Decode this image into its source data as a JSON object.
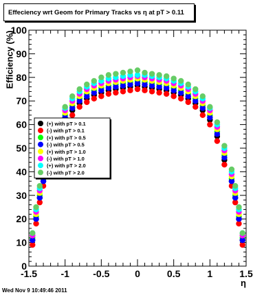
{
  "title": "Effeciency wrt Geom for Primary Tracks vs    η at pT > 0.11",
  "footer": "Wed Nov  9 10:49:46 2011",
  "chart_data": {
    "type": "scatter",
    "title": "Effeciency wrt Geom for Primary Tracks vs    η at pT > 0.11",
    "xlabel": "η",
    "ylabel": "Efficiency (%)",
    "xlim": [
      -1.5,
      1.5
    ],
    "ylim": [
      0,
      100
    ],
    "x_ticks": [
      "-1.5",
      "-1",
      "-0.5",
      "0",
      "0.5",
      "1",
      "1.5"
    ],
    "y_ticks": [
      "0",
      "10",
      "20",
      "30",
      "40",
      "50",
      "60",
      "70",
      "80",
      "90",
      "100"
    ],
    "grid": false,
    "legend_position": "middle-left",
    "series": [
      {
        "name": "(+) with pT > 0.1",
        "color": "#000000",
        "marker": "circle",
        "x": [
          -1.45,
          -1.4,
          -1.35,
          -1.3,
          -1.2,
          -1.1,
          -1.0,
          -0.9,
          -0.8,
          -0.7,
          -0.6,
          -0.5,
          -0.4,
          -0.3,
          -0.2,
          -0.1,
          0.0,
          0.1,
          0.2,
          0.3,
          0.4,
          0.5,
          0.6,
          0.7,
          0.8,
          0.9,
          1.0,
          1.1,
          1.2,
          1.3,
          1.35,
          1.4,
          1.45
        ],
        "y": [
          11,
          20,
          29,
          36,
          45,
          55,
          62,
          66,
          69,
          71,
          72.5,
          73.5,
          74.5,
          75,
          75.5,
          76,
          76.5,
          76,
          75.5,
          75,
          74.5,
          73.5,
          72.5,
          71,
          69,
          66,
          62,
          55,
          45,
          36,
          29,
          20,
          11
        ]
      },
      {
        "name": "(-) with pT > 0.1",
        "color": "#ff0000",
        "marker": "circle",
        "x": [
          -1.45,
          -1.4,
          -1.35,
          -1.3,
          -1.2,
          -1.1,
          -1.0,
          -0.9,
          -0.8,
          -0.7,
          -0.6,
          -0.5,
          -0.4,
          -0.3,
          -0.2,
          -0.1,
          0.0,
          0.1,
          0.2,
          0.3,
          0.4,
          0.5,
          0.6,
          0.7,
          0.8,
          0.9,
          1.0,
          1.1,
          1.2,
          1.3,
          1.35,
          1.4,
          1.45
        ],
        "y": [
          9,
          18,
          27,
          34,
          43,
          53,
          60,
          64,
          67.5,
          69.5,
          71,
          72,
          73,
          73.5,
          74,
          74.5,
          75,
          74.5,
          74,
          73.5,
          73,
          72,
          71,
          69.5,
          67.5,
          64,
          60,
          53,
          43,
          34,
          27,
          18,
          9
        ]
      },
      {
        "name": "(+) with pT > 0.5",
        "color": "#00ff00",
        "marker": "circle",
        "x": [
          -1.45,
          -1.4,
          -1.35,
          -1.3,
          -1.2,
          -1.1,
          -1.0,
          -0.9,
          -0.8,
          -0.7,
          -0.6,
          -0.5,
          -0.4,
          -0.3,
          -0.2,
          -0.1,
          0.0,
          0.1,
          0.2,
          0.3,
          0.4,
          0.5,
          0.6,
          0.7,
          0.8,
          0.9,
          1.0,
          1.1,
          1.2,
          1.3,
          1.35,
          1.4,
          1.45
        ],
        "y": [
          12,
          21,
          30,
          37,
          47,
          57,
          64,
          68,
          71,
          73,
          74.5,
          75.5,
          76.5,
          77,
          77.5,
          78,
          78.5,
          78,
          77.5,
          77,
          76.5,
          75.5,
          74.5,
          73,
          71,
          68,
          64,
          57,
          47,
          37,
          30,
          21,
          12
        ]
      },
      {
        "name": "(-) with pT > 0.5",
        "color": "#0000ff",
        "marker": "circle",
        "x": [
          -1.45,
          -1.4,
          -1.35,
          -1.3,
          -1.2,
          -1.1,
          -1.0,
          -0.9,
          -0.8,
          -0.7,
          -0.6,
          -0.5,
          -0.4,
          -0.3,
          -0.2,
          -0.1,
          0.0,
          0.1,
          0.2,
          0.3,
          0.4,
          0.5,
          0.6,
          0.7,
          0.8,
          0.9,
          1.0,
          1.1,
          1.2,
          1.3,
          1.35,
          1.4,
          1.45
        ],
        "y": [
          11,
          20,
          29,
          36,
          46,
          56,
          63,
          67,
          70,
          72,
          73.5,
          74.5,
          75.5,
          76,
          76.5,
          77,
          77.5,
          77,
          76.5,
          76,
          75.5,
          74.5,
          73.5,
          72,
          70,
          67,
          63,
          56,
          46,
          36,
          29,
          20,
          11
        ]
      },
      {
        "name": "(+) with pT > 1.0",
        "color": "#ffff00",
        "marker": "circle",
        "x": [
          -1.45,
          -1.4,
          -1.35,
          -1.3,
          -1.2,
          -1.1,
          -1.0,
          -0.9,
          -0.8,
          -0.7,
          -0.6,
          -0.5,
          -0.4,
          -0.3,
          -0.2,
          -0.1,
          0.0,
          0.1,
          0.2,
          0.3,
          0.4,
          0.5,
          0.6,
          0.7,
          0.8,
          0.9,
          1.0,
          1.1,
          1.2,
          1.3,
          1.35,
          1.4,
          1.45
        ],
        "y": [
          13,
          22,
          31,
          38,
          48,
          58,
          65,
          69,
          72,
          74,
          75.5,
          76.5,
          77.5,
          78,
          78.5,
          79,
          79.5,
          79,
          78.5,
          78,
          77.5,
          76.5,
          75.5,
          74,
          72,
          69,
          65,
          58,
          48,
          38,
          31,
          22,
          13
        ]
      },
      {
        "name": "(-) with pT > 1.0",
        "color": "#ff00ff",
        "marker": "circle",
        "x": [
          -1.45,
          -1.4,
          -1.35,
          -1.3,
          -1.2,
          -1.1,
          -1.0,
          -0.9,
          -0.8,
          -0.7,
          -0.6,
          -0.5,
          -0.4,
          -0.3,
          -0.2,
          -0.1,
          0.0,
          0.1,
          0.2,
          0.3,
          0.4,
          0.5,
          0.6,
          0.7,
          0.8,
          0.9,
          1.0,
          1.1,
          1.2,
          1.3,
          1.35,
          1.4,
          1.45
        ],
        "y": [
          13,
          23,
          32,
          39,
          49,
          59,
          66,
          70,
          73,
          75,
          76.5,
          77.5,
          78.5,
          79,
          79.5,
          80,
          80.5,
          80,
          79.5,
          79,
          78.5,
          77.5,
          76.5,
          75,
          73,
          70,
          66,
          59,
          49,
          39,
          32,
          23,
          13
        ]
      },
      {
        "name": "(+) with pT > 2.0",
        "color": "#00ffff",
        "marker": "circle",
        "x": [
          -1.45,
          -1.4,
          -1.35,
          -1.3,
          -1.2,
          -1.1,
          -1.0,
          -0.9,
          -0.8,
          -0.7,
          -0.6,
          -0.5,
          -0.4,
          -0.3,
          -0.2,
          -0.1,
          0.0,
          0.1,
          0.2,
          0.3,
          0.4,
          0.5,
          0.6,
          0.7,
          0.8,
          0.9,
          1.0,
          1.1,
          1.2,
          1.3,
          1.35,
          1.4,
          1.45
        ],
        "y": [
          14,
          24,
          33,
          40,
          50,
          60,
          67,
          71,
          74,
          76,
          77.5,
          78.5,
          79.5,
          80,
          80.5,
          81,
          81,
          81,
          80.5,
          80,
          79.5,
          78.5,
          77.5,
          76,
          74,
          71,
          67,
          60,
          50,
          40,
          33,
          24,
          14
        ]
      },
      {
        "name": "(-) with pT > 2.0",
        "color": "#66cc66",
        "marker": "circle",
        "x": [
          -1.45,
          -1.4,
          -1.35,
          -1.3,
          -1.2,
          -1.1,
          -1.0,
          -0.9,
          -0.8,
          -0.7,
          -0.6,
          -0.5,
          -0.4,
          -0.3,
          -0.2,
          -0.1,
          0.0,
          0.1,
          0.2,
          0.3,
          0.4,
          0.5,
          0.6,
          0.7,
          0.8,
          0.9,
          1.0,
          1.1,
          1.2,
          1.3,
          1.35,
          1.4,
          1.45
        ],
        "y": [
          14,
          25,
          34,
          41,
          51,
          61,
          67.5,
          72,
          75,
          77,
          78.5,
          80,
          81,
          81.5,
          82,
          82.5,
          83,
          82,
          81.5,
          81,
          80.5,
          79.5,
          78.5,
          77,
          75,
          72,
          67.5,
          61,
          51,
          41,
          34,
          25,
          14
        ]
      }
    ]
  }
}
